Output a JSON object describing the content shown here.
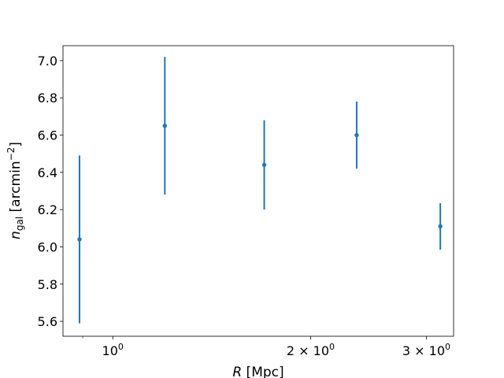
{
  "chart_data": {
    "type": "scatter",
    "title": "",
    "xlabel_main": "R",
    "xlabel_unit": " [Mpc]",
    "ylabel_main": "n",
    "ylabel_sub": "gal",
    "ylabel_unit_pre": " [arcmin",
    "ylabel_unit_sup": "−2",
    "ylabel_unit_post": "]",
    "xscale": "log",
    "xlim": [
      0.84,
      3.3
    ],
    "ylim": [
      5.52,
      7.08
    ],
    "grid": false,
    "color": "#1f77b4",
    "x_ticks": [
      {
        "value": 1,
        "base": "10",
        "exp": "0"
      },
      {
        "value": 2,
        "base": "2 × 10",
        "exp": "0"
      },
      {
        "value": 3,
        "base": "3 × 10",
        "exp": "0"
      }
    ],
    "y_ticks": [
      {
        "value": 5.6,
        "label": "5.6"
      },
      {
        "value": 5.8,
        "label": "5.8"
      },
      {
        "value": 6.0,
        "label": "6.0"
      },
      {
        "value": 6.2,
        "label": "6.2"
      },
      {
        "value": 6.4,
        "label": "6.4"
      },
      {
        "value": 6.6,
        "label": "6.6"
      },
      {
        "value": 6.8,
        "label": "6.8"
      },
      {
        "value": 7.0,
        "label": "7.0"
      }
    ],
    "points": [
      {
        "x": 0.89,
        "y": 6.04,
        "err": 0.45
      },
      {
        "x": 1.2,
        "y": 6.65,
        "err": 0.37
      },
      {
        "x": 1.7,
        "y": 6.44,
        "err": 0.24
      },
      {
        "x": 2.35,
        "y": 6.6,
        "err": 0.18
      },
      {
        "x": 3.15,
        "y": 6.11,
        "err": 0.125
      }
    ]
  }
}
